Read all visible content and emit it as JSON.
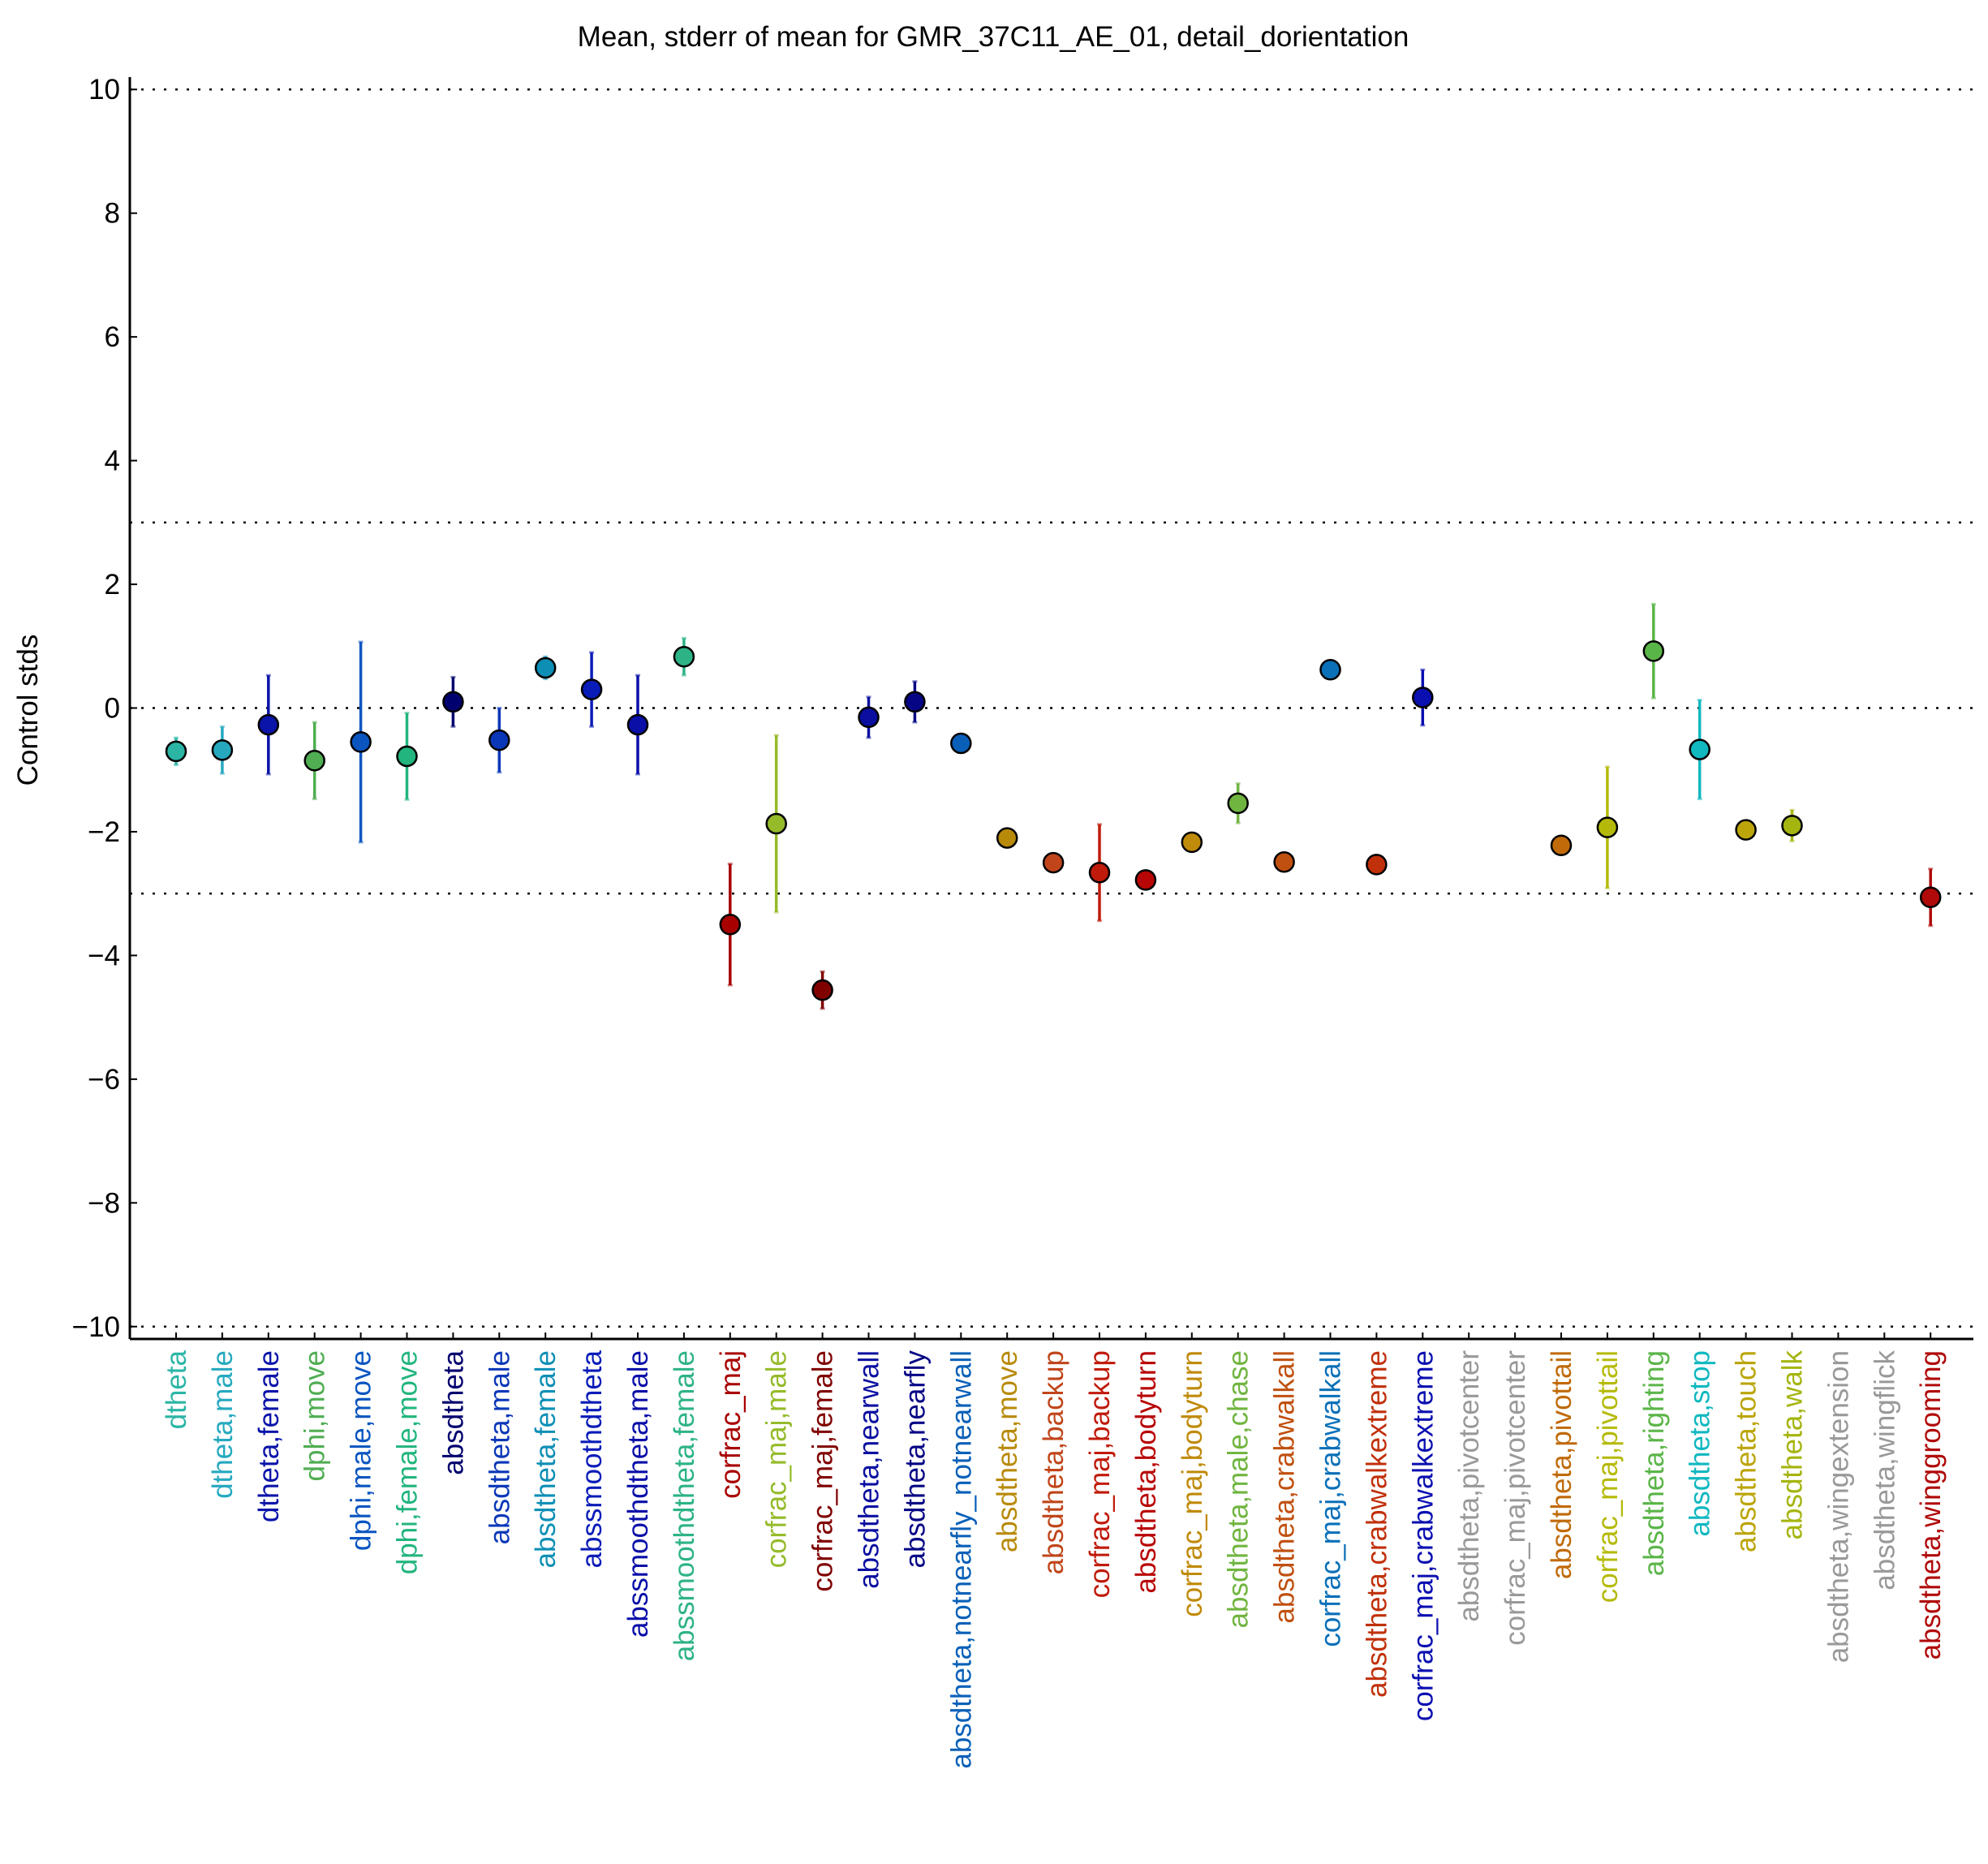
{
  "chart_data": {
    "type": "scatter",
    "title": "Mean, stderr of mean for GMR_37C11_AE_01, detail_dorientation",
    "xlabel": "",
    "ylabel": "Control stds",
    "ylim": [
      -10.2,
      10.2
    ],
    "yticks": [
      10,
      8,
      6,
      4,
      2,
      0,
      -2,
      -4,
      -6,
      -8,
      -10
    ],
    "ytick_labels": [
      "10",
      "8",
      "6",
      "4",
      "2",
      "0",
      "−2",
      "−4",
      "−6",
      "−8",
      "−10"
    ],
    "reference_lines": [
      10,
      3,
      0,
      -3,
      -10
    ],
    "points": [
      {
        "label": "dtheta",
        "mean": -0.7,
        "err": 0.22,
        "color": "#2bb5a5"
      },
      {
        "label": "dtheta,male",
        "mean": -0.68,
        "err": 0.38,
        "color": "#26a9bf"
      },
      {
        "label": "dtheta,female",
        "mean": -0.27,
        "err": 0.8,
        "color": "#0a14a8"
      },
      {
        "label": "dphi,move",
        "mean": -0.85,
        "err": 0.62,
        "color": "#50ad52"
      },
      {
        "label": "dphi,male,move",
        "mean": -0.55,
        "err": 1.62,
        "color": "#0a55c0"
      },
      {
        "label": "dphi,female,move",
        "mean": -0.78,
        "err": 0.7,
        "color": "#22b57d"
      },
      {
        "label": "absdtheta",
        "mean": 0.1,
        "err": 0.4,
        "color": "#00006e"
      },
      {
        "label": "absdtheta,male",
        "mean": -0.52,
        "err": 0.52,
        "color": "#0a37b8"
      },
      {
        "label": "absdtheta,female",
        "mean": 0.65,
        "err": 0.18,
        "color": "#0d8fb5"
      },
      {
        "label": "abssmoothdtheta",
        "mean": 0.3,
        "err": 0.6,
        "color": "#0a1cb8"
      },
      {
        "label": "abssmoothdtheta,male",
        "mean": -0.27,
        "err": 0.8,
        "color": "#0a0fa8"
      },
      {
        "label": "abssmoothdtheta,female",
        "mean": 0.83,
        "err": 0.3,
        "color": "#2db385"
      },
      {
        "label": "corfrac_maj",
        "mean": -3.5,
        "err": 0.98,
        "color": "#a80000"
      },
      {
        "label": "corfrac_maj,male",
        "mean": -1.87,
        "err": 1.43,
        "color": "#95bb2a"
      },
      {
        "label": "corfrac_maj,female",
        "mean": -4.56,
        "err": 0.3,
        "color": "#800000"
      },
      {
        "label": "absdtheta,nearwall",
        "mean": -0.15,
        "err": 0.33,
        "color": "#0a0fa0"
      },
      {
        "label": "absdtheta,nearfly",
        "mean": 0.1,
        "err": 0.33,
        "color": "#050585"
      },
      {
        "label": "absdtheta,notnearfly_notnearwall",
        "mean": -0.57,
        "err": 0.08,
        "color": "#0a60b8"
      },
      {
        "label": "absdtheta,move",
        "mean": -2.1,
        "err": 0.1,
        "color": "#b88a0a"
      },
      {
        "label": "absdtheta,backup",
        "mean": -2.5,
        "err": 0.1,
        "color": "#c0451a"
      },
      {
        "label": "corfrac_maj,backup",
        "mean": -2.66,
        "err": 0.78,
        "color": "#c01a0a"
      },
      {
        "label": "absdtheta,bodyturn",
        "mean": -2.78,
        "err": 0.1,
        "color": "#b80505"
      },
      {
        "label": "corfrac_maj,bodyturn",
        "mean": -2.17,
        "err": 0.1,
        "color": "#c08a0a"
      },
      {
        "label": "absdtheta,male,chase",
        "mean": -1.54,
        "err": 0.32,
        "color": "#70b540"
      },
      {
        "label": "absdtheta,crabwalkall",
        "mean": -2.49,
        "err": 0.1,
        "color": "#c05010"
      },
      {
        "label": "corfrac_maj,crabwalkall",
        "mean": 0.62,
        "err": 0.12,
        "color": "#0a70b8"
      },
      {
        "label": "absdtheta,crabwalkextreme",
        "mean": -2.53,
        "err": 0.1,
        "color": "#c0300a"
      },
      {
        "label": "corfrac_maj,crabwalkextreme",
        "mean": 0.17,
        "err": 0.45,
        "color": "#0a0fb0"
      },
      {
        "label": "absdtheta,pivotcenter",
        "mean": null,
        "err": null,
        "color": "#999999"
      },
      {
        "label": "corfrac_maj,pivotcenter",
        "mean": null,
        "err": null,
        "color": "#999999"
      },
      {
        "label": "absdtheta,pivottail",
        "mean": -2.22,
        "err": 0.1,
        "color": "#c06a0a"
      },
      {
        "label": "corfrac_maj,pivottail",
        "mean": -1.93,
        "err": 0.98,
        "color": "#b5ba0a"
      },
      {
        "label": "absdtheta,righting",
        "mean": 0.92,
        "err": 0.76,
        "color": "#5ab548"
      },
      {
        "label": "absdtheta,stop",
        "mean": -0.67,
        "err": 0.8,
        "color": "#10b8c0"
      },
      {
        "label": "absdtheta,touch",
        "mean": -1.97,
        "err": 0.1,
        "color": "#bba50a"
      },
      {
        "label": "absdtheta,walk",
        "mean": -1.9,
        "err": 0.25,
        "color": "#a5b510"
      },
      {
        "label": "absdtheta,wingextension",
        "mean": null,
        "err": null,
        "color": "#999999"
      },
      {
        "label": "absdtheta,wingflick",
        "mean": null,
        "err": null,
        "color": "#999999"
      },
      {
        "label": "absdtheta,winggrooming",
        "mean": -3.06,
        "err": 0.46,
        "color": "#b00a0a"
      }
    ]
  }
}
